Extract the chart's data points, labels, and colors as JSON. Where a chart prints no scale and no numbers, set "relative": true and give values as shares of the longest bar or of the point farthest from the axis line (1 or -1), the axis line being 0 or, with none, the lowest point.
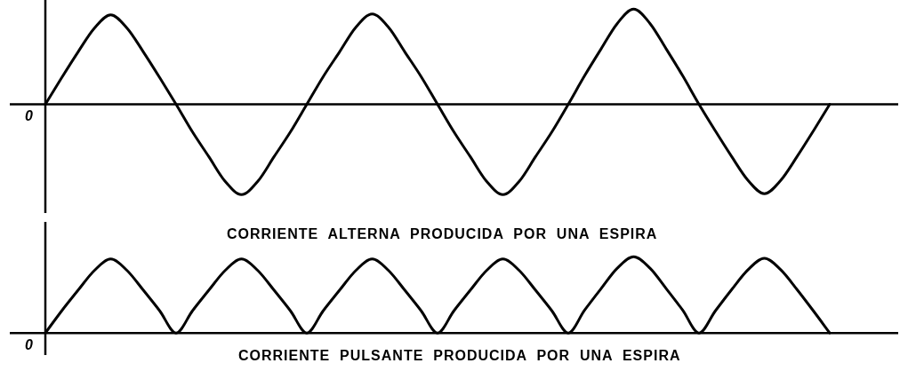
{
  "chart_data": [
    {
      "type": "line",
      "relative": true,
      "categories": [
        null,
        null,
        null,
        null,
        null,
        null,
        null,
        null,
        null,
        null,
        null,
        null,
        null,
        null,
        null,
        null,
        null,
        null,
        null,
        null,
        null,
        null,
        null,
        null,
        null,
        null,
        null,
        null,
        null,
        null,
        null,
        null,
        null,
        null,
        null,
        null,
        null,
        null,
        null,
        null,
        null,
        null,
        null,
        null,
        null,
        null,
        null,
        null,
        null
      ],
      "series": [
        {
          "color": "#000000",
          "values": [
            0,
            0.28,
            0.55,
            0.8,
            0.94,
            0.8,
            0.55,
            0.28,
            0,
            -0.29,
            -0.55,
            -0.81,
            -0.95,
            -0.81,
            -0.55,
            -0.29,
            0,
            0.29,
            0.55,
            0.81,
            0.95,
            0.81,
            0.55,
            0.29,
            0,
            -0.29,
            -0.55,
            -0.81,
            -0.95,
            -0.81,
            -0.55,
            -0.29,
            0,
            0.3,
            0.58,
            0.85,
            1,
            0.85,
            0.58,
            0.3,
            0,
            -0.28,
            -0.55,
            -0.8,
            -0.94,
            -0.8,
            -0.55,
            -0.28,
            0
          ]
        }
      ],
      "annotations": [
        "0",
        "CORRIENTE  ALTERNA  PRODUCIDA  POR  UNA  ESPIRA"
      ]
    },
    {
      "type": "line",
      "relative": true,
      "categories": [
        null,
        null,
        null,
        null,
        null,
        null,
        null,
        null,
        null,
        null,
        null,
        null,
        null,
        null,
        null,
        null,
        null,
        null,
        null,
        null,
        null,
        null,
        null,
        null,
        null,
        null,
        null,
        null,
        null,
        null,
        null,
        null,
        null,
        null,
        null,
        null,
        null,
        null,
        null,
        null,
        null,
        null,
        null,
        null,
        null,
        null,
        null,
        null,
        null
      ],
      "series": [
        {
          "color": "#000000",
          "values": [
            0,
            0.29,
            0.56,
            0.82,
            0.97,
            0.82,
            0.56,
            0.29,
            0,
            0.29,
            0.56,
            0.82,
            0.97,
            0.82,
            0.56,
            0.29,
            0,
            0.29,
            0.56,
            0.82,
            0.97,
            0.82,
            0.56,
            0.29,
            0,
            0.29,
            0.56,
            0.82,
            0.97,
            0.82,
            0.56,
            0.29,
            0,
            0.3,
            0.58,
            0.85,
            1,
            0.85,
            0.58,
            0.3,
            0,
            0.29,
            0.57,
            0.83,
            0.98,
            0.83,
            0.57,
            0.29,
            0
          ]
        }
      ],
      "annotations": [
        "0",
        "CORRIENTE  PULSANTE  PRODUCIDA  POR  UNA  ESPIRA"
      ]
    }
  ]
}
